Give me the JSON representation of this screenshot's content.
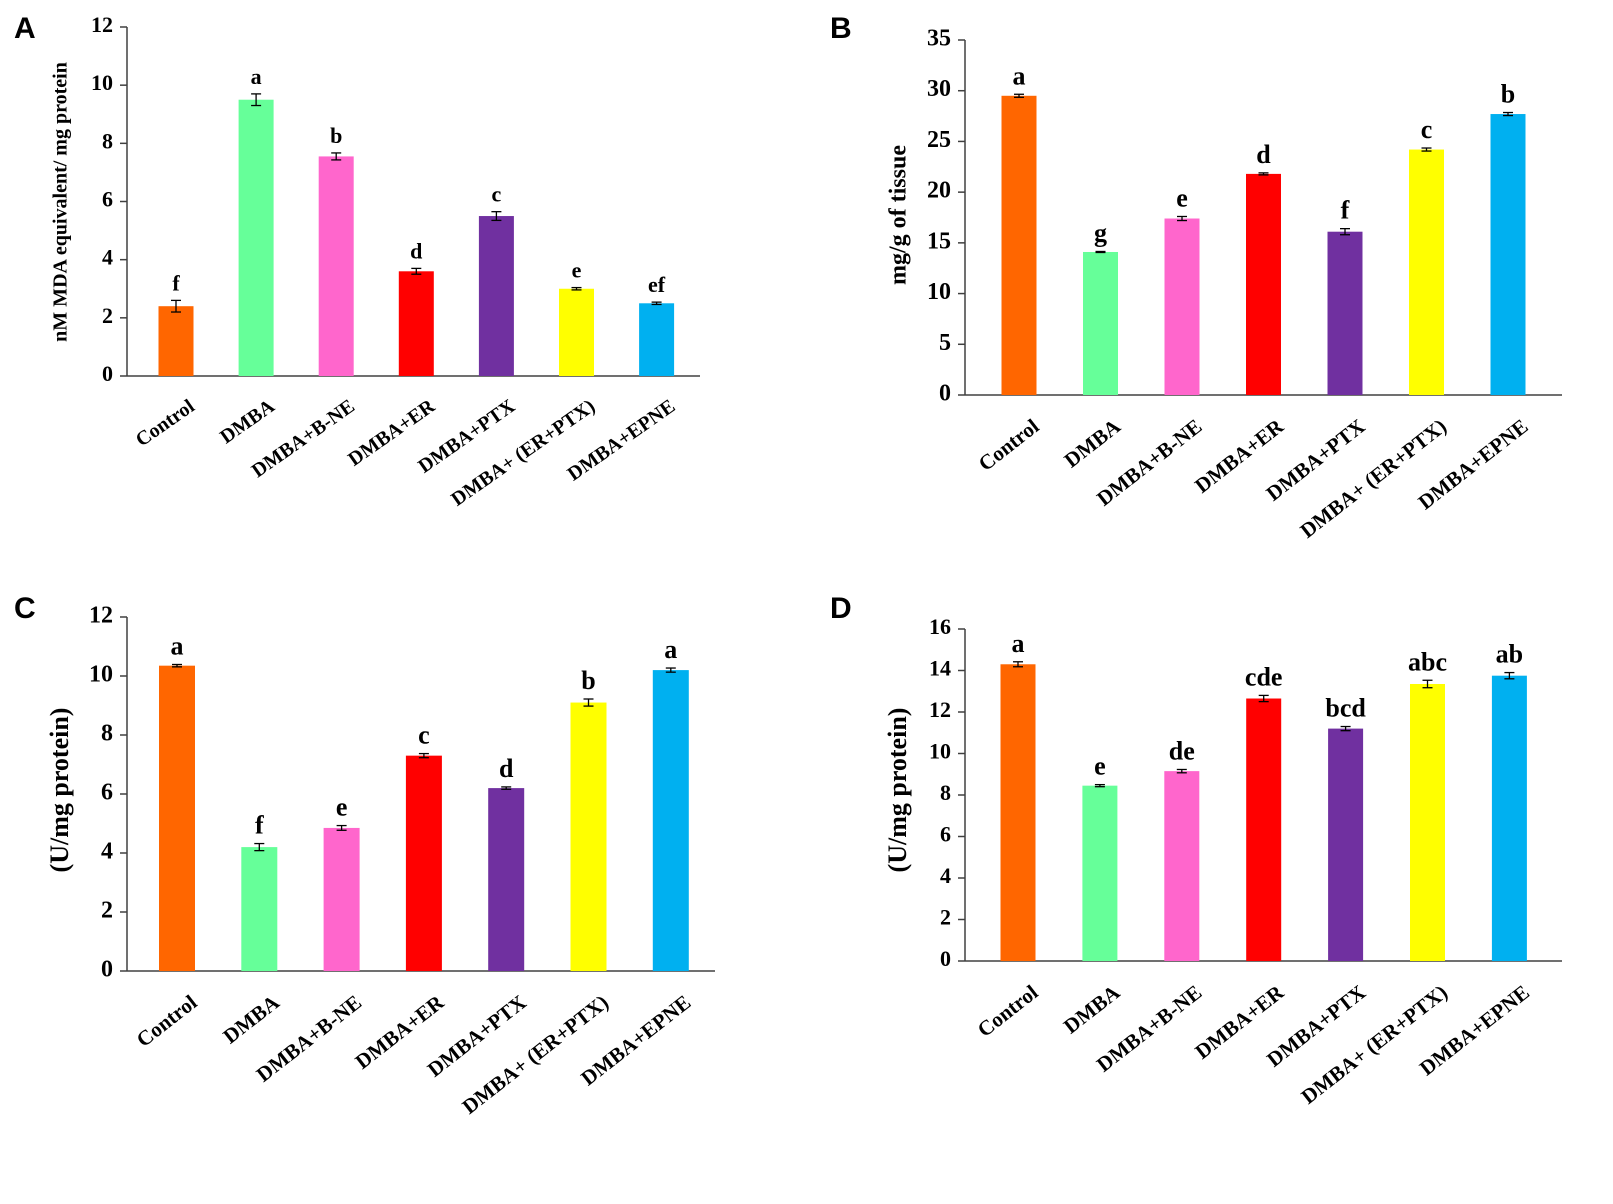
{
  "chart_data": [
    {
      "panel": "A",
      "type": "bar",
      "title": "",
      "xlabel": "",
      "ylabel": "nM MDA equivalent/ mg protein",
      "ylim": [
        0,
        12
      ],
      "yticks": [
        0,
        2,
        4,
        6,
        8,
        10,
        12
      ],
      "categories": [
        "Control",
        "DMBA",
        "DMBA+B-NE",
        "DMBA+ER",
        "DMBA+PTX",
        "DMBA+ (ER+PTX)",
        "DMBA+EPNE"
      ],
      "values": [
        2.4,
        9.5,
        7.55,
        3.6,
        5.5,
        3.0,
        2.5
      ],
      "errors": [
        0.2,
        0.2,
        0.12,
        0.1,
        0.15,
        0.04,
        0.04
      ],
      "significance_letters": [
        "f",
        "a",
        "b",
        "d",
        "c",
        "e",
        "ef"
      ],
      "colors": [
        "#ff6600",
        "#66ff99",
        "#ff66cc",
        "#ff0000",
        "#7030a0",
        "#ffff00",
        "#00b0f0"
      ]
    },
    {
      "panel": "B",
      "type": "bar",
      "title": "",
      "xlabel": "",
      "ylabel": "mg/g of tissue",
      "ylim": [
        0,
        35
      ],
      "yticks": [
        0,
        5,
        10,
        15,
        20,
        25,
        30,
        35
      ],
      "categories": [
        "Control",
        "DMBA",
        "DMBA+B-NE",
        "DMBA+ER",
        "DMBA+PTX",
        "DMBA+ (ER+PTX)",
        "DMBA+EPNE"
      ],
      "values": [
        29.5,
        14.1,
        17.4,
        21.8,
        16.1,
        24.2,
        27.7
      ],
      "errors": [
        0.15,
        0.05,
        0.2,
        0.1,
        0.3,
        0.15,
        0.15
      ],
      "significance_letters": [
        "a",
        "g",
        "e",
        "d",
        "f",
        "c",
        "b"
      ],
      "colors": [
        "#ff6600",
        "#66ff99",
        "#ff66cc",
        "#ff0000",
        "#7030a0",
        "#ffff00",
        "#00b0f0"
      ]
    },
    {
      "panel": "C",
      "type": "bar",
      "title": "",
      "xlabel": "",
      "ylabel": "(U/mg protein)",
      "ylim": [
        0,
        12
      ],
      "yticks": [
        0,
        2,
        4,
        6,
        8,
        10,
        12
      ],
      "categories": [
        "Control",
        "DMBA",
        "DMBA+B-NE",
        "DMBA+ER",
        "DMBA+PTX",
        "DMBA+ (ER+PTX)",
        "DMBA+EPNE"
      ],
      "values": [
        10.35,
        4.2,
        4.85,
        7.3,
        6.2,
        9.1,
        10.2
      ],
      "errors": [
        0.04,
        0.12,
        0.08,
        0.07,
        0.04,
        0.12,
        0.07
      ],
      "significance_letters": [
        "a",
        "f",
        "e",
        "c",
        "d",
        "b",
        "a"
      ],
      "colors": [
        "#ff6600",
        "#66ff99",
        "#ff66cc",
        "#ff0000",
        "#7030a0",
        "#ffff00",
        "#00b0f0"
      ]
    },
    {
      "panel": "D",
      "type": "bar",
      "title": "",
      "xlabel": "",
      "ylabel": "(U/mg protein)",
      "ylim": [
        0,
        16
      ],
      "yticks": [
        0,
        2,
        4,
        6,
        8,
        10,
        12,
        14,
        16
      ],
      "categories": [
        "Control",
        "DMBA",
        "DMBA+B-NE",
        "DMBA+ER",
        "DMBA+PTX",
        "DMBA+ (ER+PTX)",
        "DMBA+EPNE"
      ],
      "values": [
        14.3,
        8.45,
        9.15,
        12.65,
        11.2,
        13.35,
        13.75
      ],
      "errors": [
        0.12,
        0.05,
        0.08,
        0.15,
        0.1,
        0.18,
        0.15
      ],
      "significance_letters": [
        "a",
        "e",
        "de",
        "cde",
        "bcd",
        "abc",
        "ab"
      ],
      "colors": [
        "#ff6600",
        "#66ff99",
        "#ff66cc",
        "#ff0000",
        "#7030a0",
        "#ffff00",
        "#00b0f0"
      ]
    }
  ]
}
